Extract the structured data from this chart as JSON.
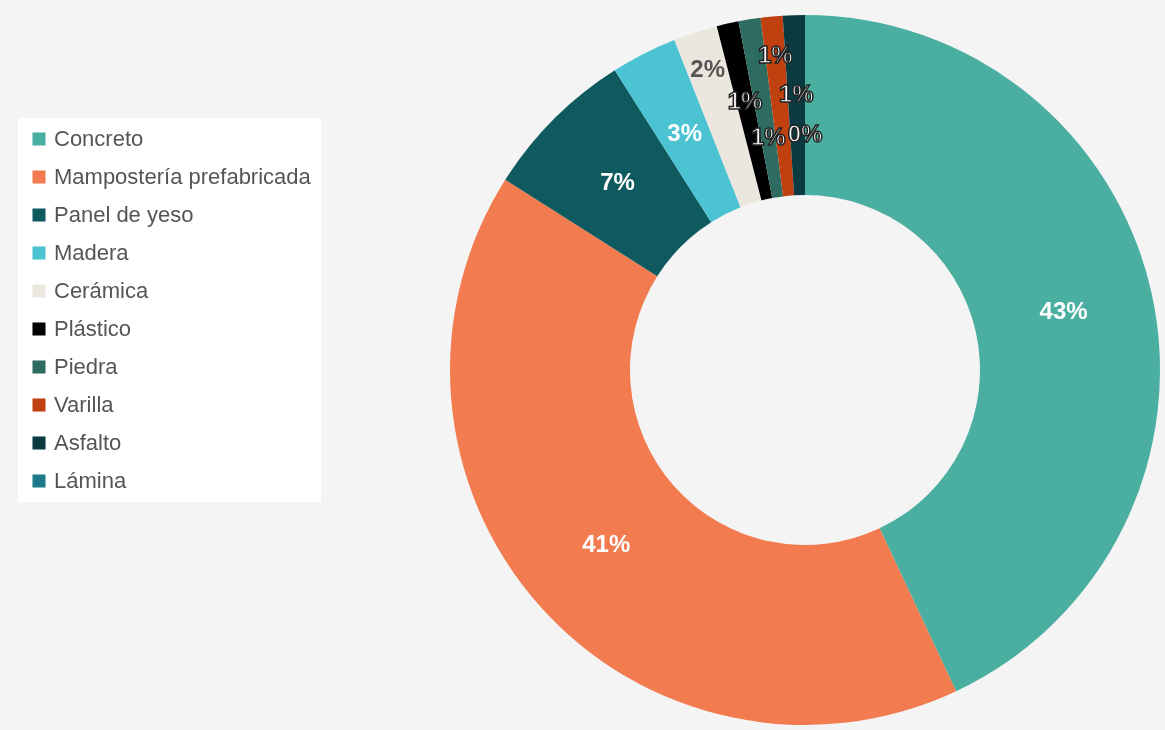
{
  "chart_data": {
    "type": "donut",
    "categories": [
      "Concreto",
      "Mampostería prefabricada",
      "Panel de yeso",
      "Madera",
      "Cerámica",
      "Plástico",
      "Piedra",
      "Varilla",
      "Asfalto",
      "Lámina"
    ],
    "values": [
      43,
      41,
      7,
      3,
      2,
      1,
      1,
      1,
      1,
      0
    ],
    "colors": [
      "#4aafa0",
      "#f27b50",
      "#0e5a5e",
      "#4cc3d3",
      "#ece7de",
      "#000000",
      "#2e6b60",
      "#c0400f",
      "#0b3a40",
      "#1e7a8a"
    ],
    "value_labels": [
      "43%",
      "41%",
      "7%",
      "3%",
      "2%",
      "1%",
      "1%",
      "1%",
      "1%",
      "0%"
    ],
    "legend": "left"
  }
}
